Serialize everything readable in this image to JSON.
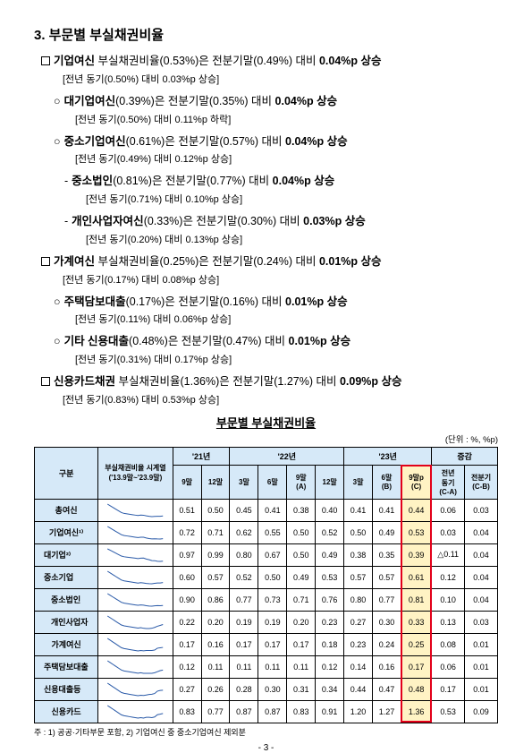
{
  "title": "3. 부문별 부실채권비율",
  "bullets": [
    {
      "level": "box",
      "strong_pre": "기업여신",
      "body": " 부실채권비율(0.53%)은 전분기말(0.49%) 대비 ",
      "strong_post": "0.04%p 상승",
      "sub": "[전년 동기(0.50%) 대비 0.03%p 상승]"
    },
    {
      "level": "circ",
      "strong_pre": "대기업여신",
      "body": "(0.39%)은 전분기말(0.35%) 대비 ",
      "strong_post": "0.04%p 상승",
      "sub": "[전년 동기(0.50%) 대비 0.11%p 하락]"
    },
    {
      "level": "circ",
      "strong_pre": "중소기업여신",
      "body": "(0.61%)은 전분기말(0.57%) 대비 ",
      "strong_post": "0.04%p 상승",
      "sub": "[전년 동기(0.49%) 대비 0.12%p 상승]"
    },
    {
      "level": "dash",
      "strong_pre": "중소법인",
      "body": "(0.81%)은 전분기말(0.77%) 대비 ",
      "strong_post": "0.04%p 상승",
      "sub": "[전년 동기(0.71%) 대비 0.10%p 상승]"
    },
    {
      "level": "dash",
      "strong_pre": "개인사업자여신",
      "body": "(0.33%)은 전분기말(0.30%) 대비 ",
      "strong_post": "0.03%p 상승",
      "sub": "[전년 동기(0.20%) 대비 0.13%p 상승]"
    },
    {
      "level": "box",
      "strong_pre": "가계여신",
      "body": " 부실채권비율(0.25%)은 전분기말(0.24%) 대비 ",
      "strong_post": "0.01%p 상승",
      "sub": "[전년 동기(0.17%) 대비 0.08%p 상승]"
    },
    {
      "level": "circ",
      "strong_pre": "주택담보대출",
      "body": "(0.17%)은 전분기말(0.16%) 대비 ",
      "strong_post": "0.01%p 상승",
      "sub": "[전년 동기(0.11%) 대비 0.06%p 상승]"
    },
    {
      "level": "circ",
      "strong_pre": "기타 신용대출",
      "body": "(0.48%)은 전분기말(0.47%) 대비 ",
      "strong_post": "0.01%p 상승",
      "sub": "[전년 동기(0.31%) 대비 0.17%p 상승]"
    },
    {
      "level": "box",
      "strong_pre": "신용카드채권",
      "body": " 부실채권비율(1.36%)은 전분기말(1.27%) 대비 ",
      "strong_post": "0.09%p 상승",
      "sub": "[전년 동기(0.83%) 대비 0.53%p 상승]"
    }
  ],
  "table_title": "부문별 부실채권비율",
  "unit": "(단위 : %, %p)",
  "header": {
    "gubun": "구분",
    "spark": "부실채권비율 시계열\n('13.9말~'23.9말)",
    "y21": "'21년",
    "y22": "'22년",
    "y23": "'23년",
    "diff": "증감",
    "cols": [
      "9말",
      "12말",
      "3말",
      "6말",
      "9말\n(A)",
      "12말",
      "3말",
      "6말\n(B)",
      "9말p\n(C)"
    ],
    "diffcols": [
      "전년\n동기\n(C-A)",
      "전분기\n(C-B)"
    ]
  },
  "rows": [
    {
      "name": "총여신",
      "cls": "rowhead",
      "vals": [
        "0.51",
        "0.50",
        "0.45",
        "0.41",
        "0.38",
        "0.40",
        "0.41",
        "0.41"
      ],
      "hl": "0.44",
      "d1": "0.06",
      "d2": "0.03"
    },
    {
      "name": "기업여신¹⁾",
      "cls": "rowhead",
      "vals": [
        "0.72",
        "0.71",
        "0.62",
        "0.55",
        "0.50",
        "0.52",
        "0.50",
        "0.49"
      ],
      "hl": "0.53",
      "d1": "0.03",
      "d2": "0.04"
    },
    {
      "name": "대기업²⁾",
      "cls": "rowhead sub",
      "vals": [
        "0.97",
        "0.99",
        "0.80",
        "0.67",
        "0.50",
        "0.49",
        "0.38",
        "0.35"
      ],
      "hl": "0.39",
      "d1": "△0.11",
      "d2": "0.04"
    },
    {
      "name": "중소기업",
      "cls": "rowhead sub",
      "vals": [
        "0.60",
        "0.57",
        "0.52",
        "0.50",
        "0.49",
        "0.53",
        "0.57",
        "0.57"
      ],
      "hl": "0.61",
      "d1": "0.12",
      "d2": "0.04"
    },
    {
      "name": "중소법인",
      "cls": "rowhead sub2",
      "vals": [
        "0.90",
        "0.86",
        "0.77",
        "0.73",
        "0.71",
        "0.76",
        "0.80",
        "0.77"
      ],
      "hl": "0.81",
      "d1": "0.10",
      "d2": "0.04"
    },
    {
      "name": "개인사업자",
      "cls": "rowhead sub2",
      "vals": [
        "0.22",
        "0.20",
        "0.19",
        "0.19",
        "0.20",
        "0.23",
        "0.27",
        "0.30"
      ],
      "hl": "0.33",
      "d1": "0.13",
      "d2": "0.03"
    },
    {
      "name": "가계여신",
      "cls": "rowhead",
      "vals": [
        "0.17",
        "0.16",
        "0.17",
        "0.17",
        "0.17",
        "0.18",
        "0.23",
        "0.24"
      ],
      "hl": "0.25",
      "d1": "0.08",
      "d2": "0.01"
    },
    {
      "name": "주택담보대출",
      "cls": "rowhead sub",
      "vals": [
        "0.12",
        "0.11",
        "0.11",
        "0.11",
        "0.11",
        "0.12",
        "0.14",
        "0.16"
      ],
      "hl": "0.17",
      "d1": "0.06",
      "d2": "0.01"
    },
    {
      "name": "신용대출등",
      "cls": "rowhead sub",
      "vals": [
        "0.27",
        "0.26",
        "0.28",
        "0.30",
        "0.31",
        "0.34",
        "0.44",
        "0.47"
      ],
      "hl": "0.48",
      "d1": "0.17",
      "d2": "0.01"
    },
    {
      "name": "신용카드",
      "cls": "rowhead",
      "vals": [
        "0.83",
        "0.77",
        "0.87",
        "0.87",
        "0.83",
        "0.91",
        "1.20",
        "1.27"
      ],
      "hl": "1.36",
      "d1": "0.53",
      "d2": "0.09"
    }
  ],
  "footnote": "주 : 1) 공공·기타부문 포함,  2) 기업여신 중 중소기업여신 제외분",
  "pagenum": "- 3 -",
  "spark_color": "#2a5aa8"
}
